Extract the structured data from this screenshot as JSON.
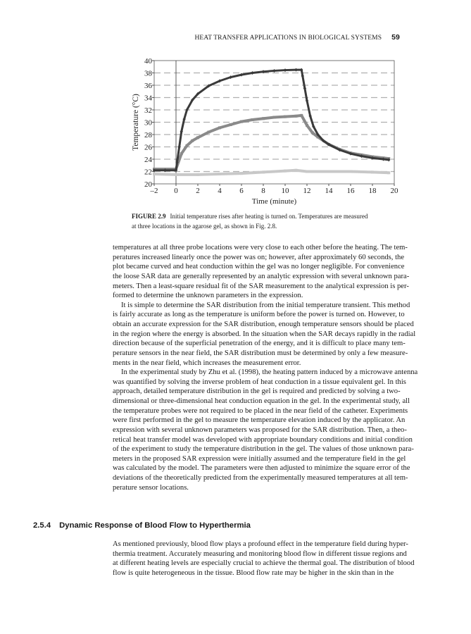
{
  "running_head": {
    "title": "HEAT TRANSFER APPLICATIONS IN BIOLOGICAL SYSTEMS",
    "page_number": "59"
  },
  "figure": {
    "label": "FIGURE 2.9",
    "caption_lines": [
      "Initial temperature rises after heating is turned on. Temperatures are measured",
      "at three locations in the agarose gel, as shown in Fig. 2.8."
    ]
  },
  "chart_data": {
    "type": "scatter",
    "xlabel": "Time (minute)",
    "ylabel": "Temperature (°C)",
    "xlim": [
      -2,
      20
    ],
    "ylim": [
      20,
      40
    ],
    "xticks": [
      -2,
      0,
      2,
      4,
      6,
      8,
      10,
      12,
      14,
      16,
      18,
      20
    ],
    "xtick_labels": [
      "–2",
      "0",
      "2",
      "4",
      "6",
      "8",
      "10",
      "12",
      "14",
      "16",
      "18",
      "20"
    ],
    "yticks": [
      20,
      22,
      24,
      26,
      28,
      30,
      32,
      34,
      36,
      38,
      40
    ],
    "grid": "horizontal dashed",
    "series": [
      {
        "color": "#3a3a3a",
        "marker": "diamond",
        "x": [
          -2,
          -1,
          0,
          0.1,
          0.3,
          0.5,
          0.75,
          1,
          1.5,
          2,
          3,
          4,
          5,
          6,
          7,
          8,
          9,
          10,
          11,
          11.5,
          11.6,
          11.8,
          12,
          12.3,
          12.6,
          13,
          13.5,
          14,
          15,
          16,
          17,
          18,
          19,
          19.5
        ],
        "y": [
          22.2,
          22.2,
          22.2,
          23.5,
          26,
          28.5,
          30.5,
          32,
          33.6,
          34.6,
          35.9,
          36.7,
          37.3,
          37.7,
          38,
          38.2,
          38.35,
          38.45,
          38.5,
          38.5,
          37.5,
          35.5,
          33.5,
          31,
          29.3,
          28,
          27,
          26.4,
          25.5,
          24.9,
          24.5,
          24.2,
          24,
          23.9
        ]
      },
      {
        "color": "#8a8a8a",
        "marker": "square",
        "x": [
          -2,
          -1,
          0,
          0.5,
          1,
          1.5,
          2,
          3,
          4,
          5,
          6,
          7,
          8,
          9,
          10,
          11,
          11.5,
          12,
          12.5,
          13,
          14,
          15,
          16,
          17,
          18,
          19,
          19.5
        ],
        "y": [
          22.4,
          22.4,
          22.4,
          24.9,
          26.2,
          27,
          27.5,
          28.4,
          29.1,
          29.6,
          30.1,
          30.4,
          30.6,
          30.8,
          30.9,
          31,
          31.1,
          29.5,
          28.3,
          27.6,
          26.4,
          25.6,
          25,
          24.7,
          24.4,
          24.2,
          24.1
        ]
      },
      {
        "color": "#c8c8c8",
        "marker": "square",
        "x": [
          -2,
          0,
          2,
          4,
          6,
          8,
          10,
          11,
          12,
          14,
          16,
          18,
          19.5
        ],
        "y": [
          21.6,
          21.5,
          21.5,
          21.6,
          21.7,
          21.9,
          22.1,
          22.2,
          22.0,
          22.0,
          22.0,
          21.9,
          21.8
        ]
      }
    ]
  },
  "paragraphs": [
    {
      "indent": false,
      "lines": [
        "temperatures at all three probe locations were very close to each other before the heating. The tem-",
        "peratures increased linearly once the power was on; however, after approximately 60 seconds, the",
        "plot became curved and heat conduction within the gel was no longer negligible. For convenience",
        "the loose SAR data are generally represented by an analytic expression with several unknown para-",
        "meters. Then a least-square residual fit of the SAR measurement to the analytical expression is per-",
        "formed to determine the unknown parameters in the expression."
      ]
    },
    {
      "indent": true,
      "lines": [
        "It is simple to determine the SAR distribution from the initial temperature transient. This method",
        "is fairly accurate as long as the temperature is uniform before the power is turned on. However, to",
        "obtain an accurate expression for the SAR distribution, enough temperature sensors should be placed",
        "in the region where the energy is absorbed. In the situation when the SAR decays rapidly in the radial",
        "direction because of the superficial penetration of the energy, and it is difficult to place many tem-",
        "perature sensors in the near field, the SAR distribution must be determined by only a few measure-",
        "ments in the near field, which increases the measurement error."
      ]
    },
    {
      "indent": true,
      "lines": [
        "In the experimental study by Zhu et al. (1998), the heating pattern induced by a microwave antenna",
        "was quantified by solving the inverse problem of heat conduction in a tissue equivalent gel. In this",
        "approach, detailed temperature distribution in the gel is required and predicted by solving a two-",
        "dimensional or three-dimensional heat conduction equation in the gel. In the experimental study, all",
        "the temperature probes were not required to be placed in the near field of the catheter. Experiments",
        "were first performed in the gel to measure the temperature elevation induced by the applicator. An",
        "expression with several unknown parameters was proposed for the SAR distribution. Then, a theo-",
        "retical heat transfer model was developed with appropriate boundary conditions and initial condition",
        "of the experiment to study the temperature distribution in the gel. The values of those unknown para-",
        "meters in the proposed SAR expression were initially assumed and the temperature field in the gel",
        "was calculated by the model. The parameters were then adjusted to minimize the square error of the",
        "deviations of the theoretically predicted from the experimentally measured temperatures at all tem-",
        "perature sensor locations."
      ]
    }
  ],
  "section": {
    "number": "2.5.4",
    "title": "Dynamic Response of Blood Flow to Hyperthermia"
  },
  "section_paragraph": {
    "lines": [
      "As mentioned previously, blood flow plays a profound effect in the temperature field during hyper-",
      "thermia treatment. Accurately measuring and monitoring blood flow in different tissue regions and",
      "at different heating levels are especially crucial to achieve the thermal goal. The distribution of blood",
      "flow is quite heterogeneous in the tissue. Blood flow rate may be higher in the skin than in the"
    ]
  }
}
